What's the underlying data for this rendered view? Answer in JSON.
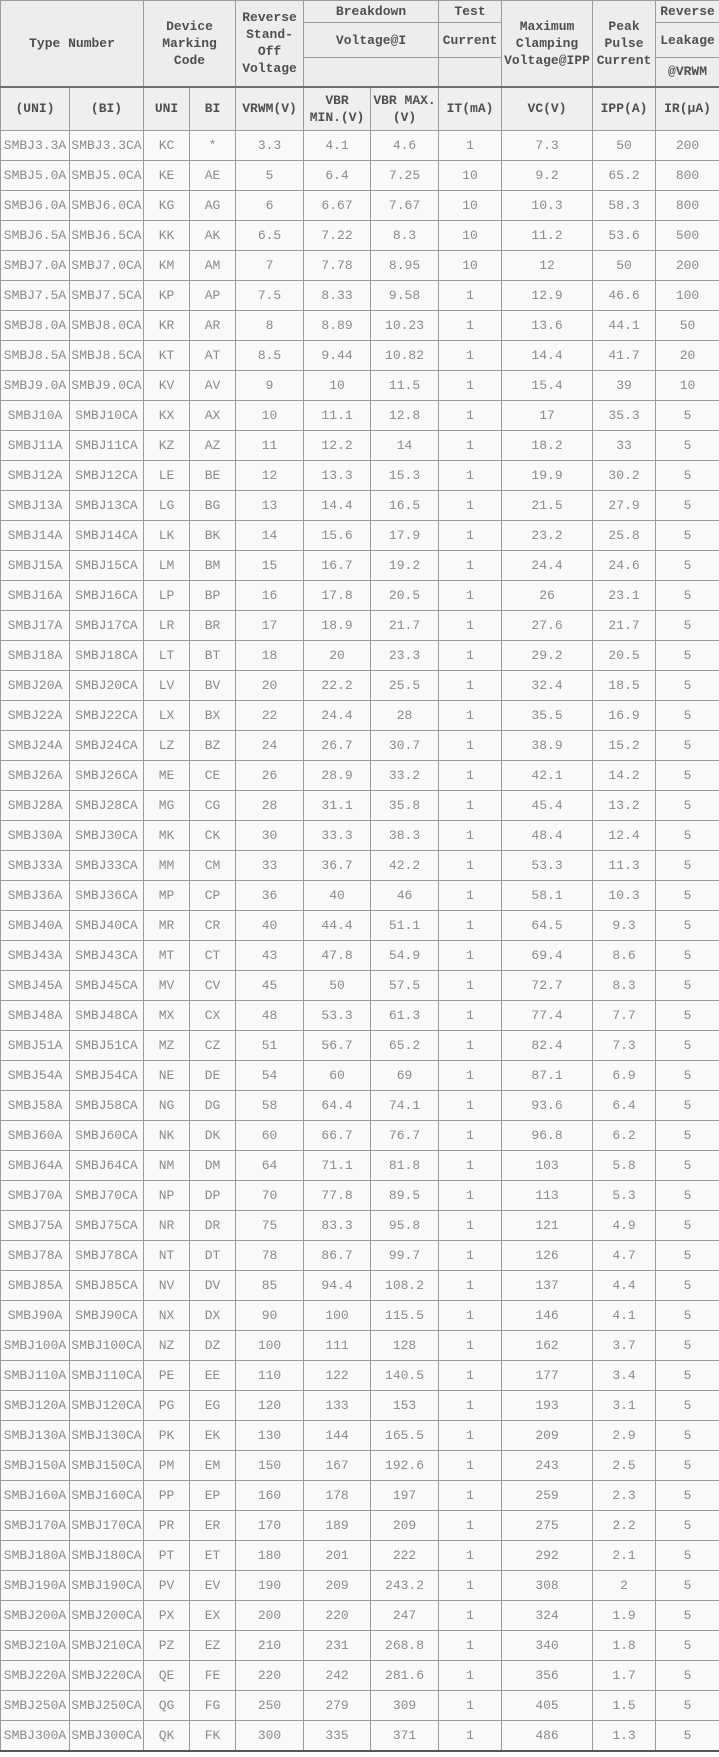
{
  "colors": {
    "header_bg": "#ededed",
    "subheader_bg": "#efefef",
    "row_bg": "#f9f9f9",
    "grid_border": "#9b9b9b",
    "heavy_border": "#6e6e6e",
    "bottom_border": "#565656",
    "header_text": "#4f4f4f",
    "data_text": "#8a8a8a"
  },
  "table": {
    "header": {
      "type_number": "Type Number",
      "device_marking_code": "Device\nMarking\nCode",
      "reverse_standoff_voltage": "Reverse\nStand-\nOff\nVoltage",
      "breakdown": "Breakdown",
      "breakdown_sub": "Voltage@I",
      "test": "Test",
      "test_sub": "Current",
      "maximum_clamping": "Maximum\nClamping\nVoltage@IPP",
      "peak_pulse_current": "Peak\nPulse\nCurrent",
      "reverse_leakage_1": "Reverse",
      "reverse_leakage_2": "Leakage",
      "reverse_leakage_3": "@VRWM"
    },
    "subheader": [
      "(UNI)",
      "(BI)",
      "UNI",
      "BI",
      "VRWM(V)",
      "VBR\nMIN.(V)",
      "VBR MAX.\n(V)",
      "IT(mA)",
      "VC(V)",
      "IPP(A)",
      "IR(μA)"
    ],
    "rows": [
      [
        "SMBJ3.3A",
        "SMBJ3.3CA",
        "KC",
        "*",
        "3.3",
        "4.1",
        "4.6",
        "1",
        "7.3",
        "50",
        "200"
      ],
      [
        "SMBJ5.0A",
        "SMBJ5.0CA",
        "KE",
        "AE",
        "5",
        "6.4",
        "7.25",
        "10",
        "9.2",
        "65.2",
        "800"
      ],
      [
        "SMBJ6.0A",
        "SMBJ6.0CA",
        "KG",
        "AG",
        "6",
        "6.67",
        "7.67",
        "10",
        "10.3",
        "58.3",
        "800"
      ],
      [
        "SMBJ6.5A",
        "SMBJ6.5CA",
        "KK",
        "AK",
        "6.5",
        "7.22",
        "8.3",
        "10",
        "11.2",
        "53.6",
        "500"
      ],
      [
        "SMBJ7.0A",
        "SMBJ7.0CA",
        "KM",
        "AM",
        "7",
        "7.78",
        "8.95",
        "10",
        "12",
        "50",
        "200"
      ],
      [
        "SMBJ7.5A",
        "SMBJ7.5CA",
        "KP",
        "AP",
        "7.5",
        "8.33",
        "9.58",
        "1",
        "12.9",
        "46.6",
        "100"
      ],
      [
        "SMBJ8.0A",
        "SMBJ8.0CA",
        "KR",
        "AR",
        "8",
        "8.89",
        "10.23",
        "1",
        "13.6",
        "44.1",
        "50"
      ],
      [
        "SMBJ8.5A",
        "SMBJ8.5CA",
        "KT",
        "AT",
        "8.5",
        "9.44",
        "10.82",
        "1",
        "14.4",
        "41.7",
        "20"
      ],
      [
        "SMBJ9.0A",
        "SMBJ9.0CA",
        "KV",
        "AV",
        "9",
        "10",
        "11.5",
        "1",
        "15.4",
        "39",
        "10"
      ],
      [
        "SMBJ10A",
        "SMBJ10CA",
        "KX",
        "AX",
        "10",
        "11.1",
        "12.8",
        "1",
        "17",
        "35.3",
        "5"
      ],
      [
        "SMBJ11A",
        "SMBJ11CA",
        "KZ",
        "AZ",
        "11",
        "12.2",
        "14",
        "1",
        "18.2",
        "33",
        "5"
      ],
      [
        "SMBJ12A",
        "SMBJ12CA",
        "LE",
        "BE",
        "12",
        "13.3",
        "15.3",
        "1",
        "19.9",
        "30.2",
        "5"
      ],
      [
        "SMBJ13A",
        "SMBJ13CA",
        "LG",
        "BG",
        "13",
        "14.4",
        "16.5",
        "1",
        "21.5",
        "27.9",
        "5"
      ],
      [
        "SMBJ14A",
        "SMBJ14CA",
        "LK",
        "BK",
        "14",
        "15.6",
        "17.9",
        "1",
        "23.2",
        "25.8",
        "5"
      ],
      [
        "SMBJ15A",
        "SMBJ15CA",
        "LM",
        "BM",
        "15",
        "16.7",
        "19.2",
        "1",
        "24.4",
        "24.6",
        "5"
      ],
      [
        "SMBJ16A",
        "SMBJ16CA",
        "LP",
        "BP",
        "16",
        "17.8",
        "20.5",
        "1",
        "26",
        "23.1",
        "5"
      ],
      [
        "SMBJ17A",
        "SMBJ17CA",
        "LR",
        "BR",
        "17",
        "18.9",
        "21.7",
        "1",
        "27.6",
        "21.7",
        "5"
      ],
      [
        "SMBJ18A",
        "SMBJ18CA",
        "LT",
        "BT",
        "18",
        "20",
        "23.3",
        "1",
        "29.2",
        "20.5",
        "5"
      ],
      [
        "SMBJ20A",
        "SMBJ20CA",
        "LV",
        "BV",
        "20",
        "22.2",
        "25.5",
        "1",
        "32.4",
        "18.5",
        "5"
      ],
      [
        "SMBJ22A",
        "SMBJ22CA",
        "LX",
        "BX",
        "22",
        "24.4",
        "28",
        "1",
        "35.5",
        "16.9",
        "5"
      ],
      [
        "SMBJ24A",
        "SMBJ24CA",
        "LZ",
        "BZ",
        "24",
        "26.7",
        "30.7",
        "1",
        "38.9",
        "15.2",
        "5"
      ],
      [
        "SMBJ26A",
        "SMBJ26CA",
        "ME",
        "CE",
        "26",
        "28.9",
        "33.2",
        "1",
        "42.1",
        "14.2",
        "5"
      ],
      [
        "SMBJ28A",
        "SMBJ28CA",
        "MG",
        "CG",
        "28",
        "31.1",
        "35.8",
        "1",
        "45.4",
        "13.2",
        "5"
      ],
      [
        "SMBJ30A",
        "SMBJ30CA",
        "MK",
        "CK",
        "30",
        "33.3",
        "38.3",
        "1",
        "48.4",
        "12.4",
        "5"
      ],
      [
        "SMBJ33A",
        "SMBJ33CA",
        "MM",
        "CM",
        "33",
        "36.7",
        "42.2",
        "1",
        "53.3",
        "11.3",
        "5"
      ],
      [
        "SMBJ36A",
        "SMBJ36CA",
        "MP",
        "CP",
        "36",
        "40",
        "46",
        "1",
        "58.1",
        "10.3",
        "5"
      ],
      [
        "SMBJ40A",
        "SMBJ40CA",
        "MR",
        "CR",
        "40",
        "44.4",
        "51.1",
        "1",
        "64.5",
        "9.3",
        "5"
      ],
      [
        "SMBJ43A",
        "SMBJ43CA",
        "MT",
        "CT",
        "43",
        "47.8",
        "54.9",
        "1",
        "69.4",
        "8.6",
        "5"
      ],
      [
        "SMBJ45A",
        "SMBJ45CA",
        "MV",
        "CV",
        "45",
        "50",
        "57.5",
        "1",
        "72.7",
        "8.3",
        "5"
      ],
      [
        "SMBJ48A",
        "SMBJ48CA",
        "MX",
        "CX",
        "48",
        "53.3",
        "61.3",
        "1",
        "77.4",
        "7.7",
        "5"
      ],
      [
        "SMBJ51A",
        "SMBJ51CA",
        "MZ",
        "CZ",
        "51",
        "56.7",
        "65.2",
        "1",
        "82.4",
        "7.3",
        "5"
      ],
      [
        "SMBJ54A",
        "SMBJ54CA",
        "NE",
        "DE",
        "54",
        "60",
        "69",
        "1",
        "87.1",
        "6.9",
        "5"
      ],
      [
        "SMBJ58A",
        "SMBJ58CA",
        "NG",
        "DG",
        "58",
        "64.4",
        "74.1",
        "1",
        "93.6",
        "6.4",
        "5"
      ],
      [
        "SMBJ60A",
        "SMBJ60CA",
        "NK",
        "DK",
        "60",
        "66.7",
        "76.7",
        "1",
        "96.8",
        "6.2",
        "5"
      ],
      [
        "SMBJ64A",
        "SMBJ64CA",
        "NM",
        "DM",
        "64",
        "71.1",
        "81.8",
        "1",
        "103",
        "5.8",
        "5"
      ],
      [
        "SMBJ70A",
        "SMBJ70CA",
        "NP",
        "DP",
        "70",
        "77.8",
        "89.5",
        "1",
        "113",
        "5.3",
        "5"
      ],
      [
        "SMBJ75A",
        "SMBJ75CA",
        "NR",
        "DR",
        "75",
        "83.3",
        "95.8",
        "1",
        "121",
        "4.9",
        "5"
      ],
      [
        "SMBJ78A",
        "SMBJ78CA",
        "NT",
        "DT",
        "78",
        "86.7",
        "99.7",
        "1",
        "126",
        "4.7",
        "5"
      ],
      [
        "SMBJ85A",
        "SMBJ85CA",
        "NV",
        "DV",
        "85",
        "94.4",
        "108.2",
        "1",
        "137",
        "4.4",
        "5"
      ],
      [
        "SMBJ90A",
        "SMBJ90CA",
        "NX",
        "DX",
        "90",
        "100",
        "115.5",
        "1",
        "146",
        "4.1",
        "5"
      ],
      [
        "SMBJ100A",
        "SMBJ100CA",
        "NZ",
        "DZ",
        "100",
        "111",
        "128",
        "1",
        "162",
        "3.7",
        "5"
      ],
      [
        "SMBJ110A",
        "SMBJ110CA",
        "PE",
        "EE",
        "110",
        "122",
        "140.5",
        "1",
        "177",
        "3.4",
        "5"
      ],
      [
        "SMBJ120A",
        "SMBJ120CA",
        "PG",
        "EG",
        "120",
        "133",
        "153",
        "1",
        "193",
        "3.1",
        "5"
      ],
      [
        "SMBJ130A",
        "SMBJ130CA",
        "PK",
        "EK",
        "130",
        "144",
        "165.5",
        "1",
        "209",
        "2.9",
        "5"
      ],
      [
        "SMBJ150A",
        "SMBJ150CA",
        "PM",
        "EM",
        "150",
        "167",
        "192.6",
        "1",
        "243",
        "2.5",
        "5"
      ],
      [
        "SMBJ160A",
        "SMBJ160CA",
        "PP",
        "EP",
        "160",
        "178",
        "197",
        "1",
        "259",
        "2.3",
        "5"
      ],
      [
        "SMBJ170A",
        "SMBJ170CA",
        "PR",
        "ER",
        "170",
        "189",
        "209",
        "1",
        "275",
        "2.2",
        "5"
      ],
      [
        "SMBJ180A",
        "SMBJ180CA",
        "PT",
        "ET",
        "180",
        "201",
        "222",
        "1",
        "292",
        "2.1",
        "5"
      ],
      [
        "SMBJ190A",
        "SMBJ190CA",
        "PV",
        "EV",
        "190",
        "209",
        "243.2",
        "1",
        "308",
        "2",
        "5"
      ],
      [
        "SMBJ200A",
        "SMBJ200CA",
        "PX",
        "EX",
        "200",
        "220",
        "247",
        "1",
        "324",
        "1.9",
        "5"
      ],
      [
        "SMBJ210A",
        "SMBJ210CA",
        "PZ",
        "EZ",
        "210",
        "231",
        "268.8",
        "1",
        "340",
        "1.8",
        "5"
      ],
      [
        "SMBJ220A",
        "SMBJ220CA",
        "QE",
        "FE",
        "220",
        "242",
        "281.6",
        "1",
        "356",
        "1.7",
        "5"
      ],
      [
        "SMBJ250A",
        "SMBJ250CA",
        "QG",
        "FG",
        "250",
        "279",
        "309",
        "1",
        "405",
        "1.5",
        "5"
      ],
      [
        "SMBJ300A",
        "SMBJ300CA",
        "QK",
        "FK",
        "300",
        "335",
        "371",
        "1",
        "486",
        "1.3",
        "5"
      ]
    ]
  }
}
